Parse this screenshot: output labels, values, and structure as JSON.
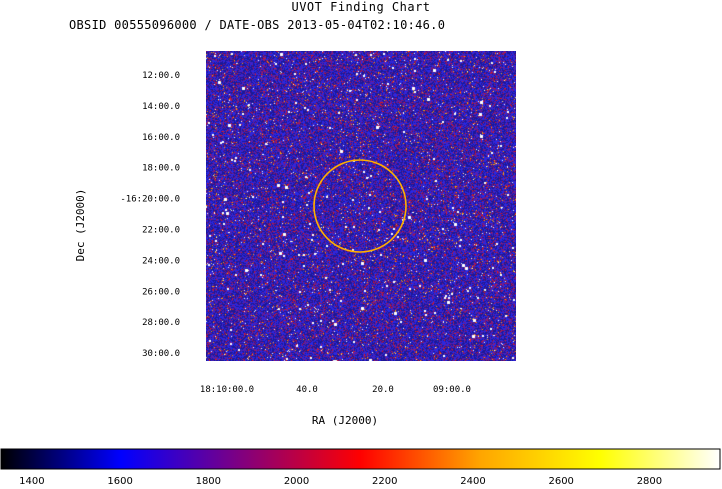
{
  "header": {
    "title": "UVOT Finding Chart",
    "subtitle": "OBSID 00555096000 / DATE-OBS 2013-05-04T02:10:46.0"
  },
  "chart_data": {
    "type": "heatmap",
    "title": "UVOT Finding Chart",
    "xlabel": "RA (J2000)",
    "ylabel": "Dec (J2000)",
    "dec_ticks": [
      "12:00.0",
      "14:00.0",
      "16:00.0",
      "18:00.0",
      "-16:20:00.0",
      "22:00.0",
      "24:00.0",
      "26:00.0",
      "28:00.0",
      "30:00.0"
    ],
    "ra_ticks": [
      "18:10:00.0",
      "40.0",
      "20.0",
      "09:00.0"
    ],
    "colorbar": {
      "ticks": [
        1400,
        1600,
        1800,
        2000,
        2200,
        2400,
        2600,
        2800
      ],
      "range": [
        1330,
        2960
      ],
      "colors": [
        "#000000",
        "#0000ff",
        "#800080",
        "#ff0000",
        "#ffa500",
        "#ffff00",
        "#ffffff"
      ]
    },
    "marker": {
      "shape": "circle",
      "color": "#ffb000"
    },
    "grid": false
  }
}
